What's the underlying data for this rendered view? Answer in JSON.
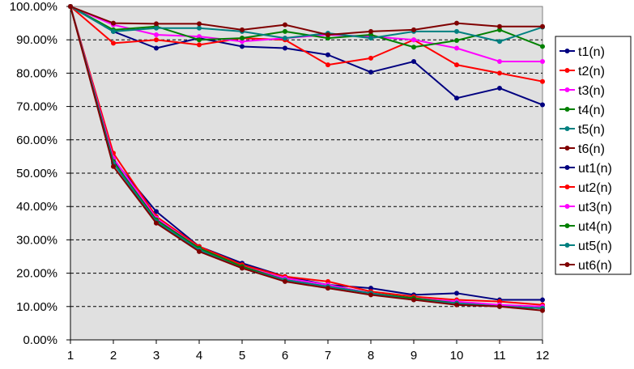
{
  "chart_data": {
    "type": "line",
    "title": "",
    "xlabel": "",
    "ylabel": "",
    "x": [
      1,
      2,
      3,
      4,
      5,
      6,
      7,
      8,
      9,
      10,
      11,
      12
    ],
    "ylim": [
      0,
      100
    ],
    "y_ticks": [
      "0.00%",
      "10.00%",
      "20.00%",
      "30.00%",
      "40.00%",
      "50.00%",
      "60.00%",
      "70.00%",
      "80.00%",
      "90.00%",
      "100.00%"
    ],
    "y_tick_values": [
      0,
      10,
      20,
      30,
      40,
      50,
      60,
      70,
      80,
      90,
      100
    ],
    "grid": "horizontal dashed",
    "plot_background": "#e0e0e0",
    "legend_position": "right",
    "series": [
      {
        "name": "t1(n)",
        "color": "#000080",
        "values": [
          100,
          92.5,
          87.5,
          90.5,
          88.0,
          87.5,
          85.5,
          80.3,
          83.5,
          72.5,
          75.5,
          70.5
        ]
      },
      {
        "name": "t2(n)",
        "color": "#ff0000",
        "values": [
          100,
          89.0,
          90.0,
          88.5,
          90.5,
          90.0,
          82.5,
          84.5,
          90.0,
          82.5,
          80.0,
          77.5
        ]
      },
      {
        "name": "t3(n)",
        "color": "#ff00ff",
        "values": [
          100,
          94.5,
          91.5,
          91.0,
          89.5,
          90.5,
          91.5,
          91.0,
          90.0,
          87.5,
          83.5,
          83.5
        ]
      },
      {
        "name": "t4(n)",
        "color": "#008000",
        "values": [
          100,
          93.0,
          94.0,
          90.0,
          90.5,
          92.5,
          90.5,
          91.5,
          87.8,
          89.8,
          93.0,
          88.0
        ]
      },
      {
        "name": "t5(n)",
        "color": "#008080",
        "values": [
          100,
          92.5,
          93.5,
          93.5,
          92.5,
          90.5,
          92.0,
          90.5,
          92.5,
          92.5,
          89.5,
          93.8
        ]
      },
      {
        "name": "t6(n)",
        "color": "#800000",
        "values": [
          100,
          95.0,
          94.8,
          94.8,
          93.0,
          94.5,
          91.5,
          92.5,
          93.0,
          95.0,
          94.0,
          94.0
        ]
      },
      {
        "name": "ut1(n)",
        "color": "#000080",
        "values": [
          100,
          54.0,
          38.5,
          28.0,
          23.0,
          19.0,
          16.5,
          15.5,
          13.5,
          14.0,
          12.0,
          12.0
        ]
      },
      {
        "name": "ut2(n)",
        "color": "#ff0000",
        "values": [
          100,
          56.0,
          37.0,
          28.0,
          22.5,
          19.0,
          17.5,
          14.5,
          13.0,
          12.0,
          11.5,
          10.5
        ]
      },
      {
        "name": "ut3(n)",
        "color": "#ff00ff",
        "values": [
          100,
          54.5,
          36.5,
          27.5,
          22.0,
          18.5,
          16.5,
          14.0,
          12.5,
          11.5,
          10.5,
          10.0
        ]
      },
      {
        "name": "ut4(n)",
        "color": "#008000",
        "values": [
          100,
          53.5,
          36.0,
          27.5,
          22.0,
          18.0,
          16.0,
          14.0,
          12.5,
          11.0,
          10.0,
          9.5
        ]
      },
      {
        "name": "ut5(n)",
        "color": "#008080",
        "values": [
          100,
          53.0,
          35.5,
          27.0,
          21.5,
          18.0,
          16.0,
          14.0,
          12.0,
          11.0,
          10.0,
          9.5
        ]
      },
      {
        "name": "ut6(n)",
        "color": "#800000",
        "values": [
          100,
          52.0,
          35.0,
          26.5,
          21.5,
          17.5,
          15.5,
          13.5,
          12.0,
          10.5,
          10.0,
          8.8
        ]
      }
    ]
  }
}
